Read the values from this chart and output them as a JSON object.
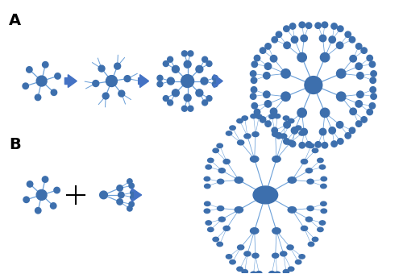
{
  "node_color": "#3d6fad",
  "node_edge_color": "#3d6fad",
  "line_color": "#6a9fd8",
  "bg_color": "#ffffff",
  "label_A": "A",
  "label_B": "B",
  "arrow_fill": "#4472c4",
  "figsize": [
    5.0,
    3.4
  ],
  "dpi": 100
}
